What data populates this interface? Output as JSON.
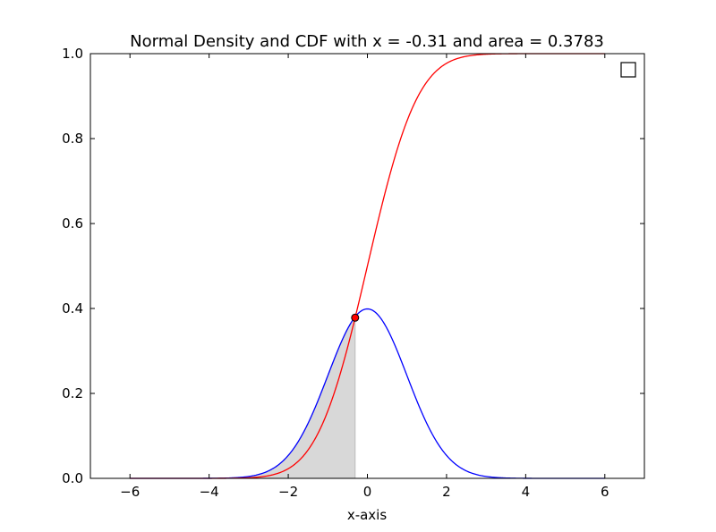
{
  "chart_data": {
    "type": "line",
    "title": "Normal Density and CDF with x = -0.31 and area = 0.3783",
    "xlabel": "x-axis",
    "ylabel": "",
    "xlim": [
      -7,
      7
    ],
    "ylim": [
      0,
      1.0
    ],
    "x_range": [
      -6,
      6
    ],
    "x_ticks": [
      -6,
      -4,
      -2,
      0,
      2,
      4,
      6
    ],
    "x_tick_labels": [
      "−6",
      "−4",
      "−2",
      "0",
      "2",
      "4",
      "6"
    ],
    "y_ticks": [
      0.0,
      0.2,
      0.4,
      0.6,
      0.8,
      1.0
    ],
    "y_tick_labels": [
      "0.0",
      "0.2",
      "0.4",
      "0.6",
      "0.8",
      "1.0"
    ],
    "grid": false,
    "legend": {
      "placement": "top-right",
      "entries": []
    },
    "series": [
      {
        "kind": "pdf",
        "color": "#0000ff",
        "mean": 0,
        "sd": 1
      },
      {
        "kind": "cdf",
        "color": "#ff0000",
        "mean": 0,
        "sd": 1
      }
    ],
    "shaded_area": {
      "from": -6,
      "to": -0.31,
      "under": "pdf",
      "color": "#d8d8d8",
      "area": 0.3783
    },
    "marker": {
      "x": -0.31,
      "y": 0.3783,
      "fill": "#ff0000",
      "edge": "#000000"
    }
  }
}
